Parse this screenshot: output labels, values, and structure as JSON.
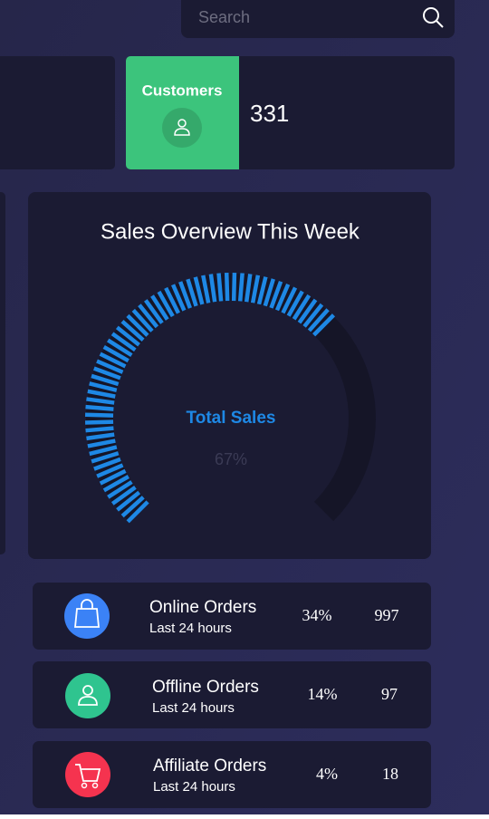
{
  "search": {
    "placeholder": "Search"
  },
  "customers": {
    "label": "Customers",
    "count": "331"
  },
  "sales_overview": {
    "title": "Sales Overview This Week",
    "gauge": {
      "title": "Total Sales",
      "value": 67,
      "value_label": "67%"
    }
  },
  "orders": [
    {
      "title": "Online Orders",
      "subtitle": "Last 24 hours",
      "percent": "34%",
      "count": "997"
    },
    {
      "title": "Offline Orders",
      "subtitle": "Last 24 hours",
      "percent": "14%",
      "count": "97"
    },
    {
      "title": "Affiliate Orders",
      "subtitle": "Last 24 hours",
      "percent": "4%",
      "count": "18"
    }
  ]
}
